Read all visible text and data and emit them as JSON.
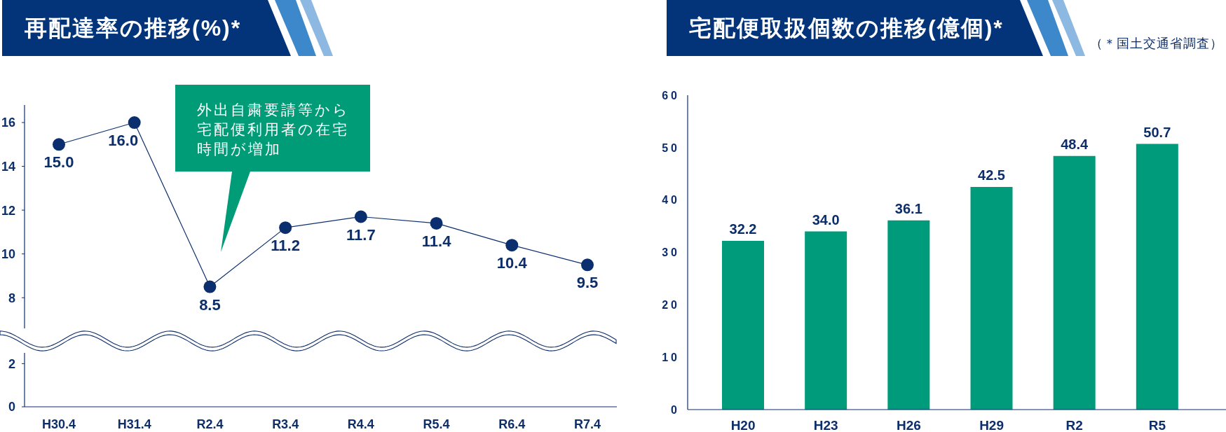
{
  "chart_data": [
    {
      "type": "line",
      "title": "再配達率の推移(%)*",
      "categories": [
        null,
        null,
        null,
        null,
        null,
        null,
        null,
        null
      ],
      "values": [
        15.0,
        16.0,
        8.5,
        11.2,
        11.7,
        11.4,
        10.4,
        9.5
      ],
      "value_labels": [
        "15.0",
        "16.0",
        "8.5",
        "11.2",
        "11.7",
        "11.4",
        "10.4",
        "9.5"
      ],
      "color": "#0b2f6e",
      "marker": "circle",
      "ylim": [
        6.6,
        16.8
      ],
      "yticks": [
        8,
        10,
        12,
        14,
        16
      ],
      "annotations": [
        "外出自粛要請等から宅配便利用者の在宅時間が増加"
      ]
    },
    {
      "type": "line",
      "categories": [
        "H30.4",
        "H31.4",
        "R2.4",
        "R3.4",
        "R4.4",
        "R5.4",
        "R6.4",
        "R7.4"
      ],
      "values": [
        null,
        null,
        null,
        null,
        null,
        null,
        null,
        null
      ],
      "ylim": [
        0,
        2.5
      ],
      "yticks": [
        0,
        2
      ]
    },
    {
      "type": "bar",
      "title": "宅配便取扱個数の推移(億個)*",
      "categories": [
        "H20",
        "H23",
        "H26",
        "H29",
        "R2",
        "R5"
      ],
      "values": [
        32.2,
        34.0,
        36.1,
        42.5,
        48.4,
        50.7
      ],
      "value_labels": [
        "32.2",
        "34.0",
        "36.1",
        "42.5",
        "48.4",
        "50.7"
      ],
      "color": "#009b7a",
      "ylim": [
        0,
        60
      ],
      "yticks": [
        0,
        10,
        20,
        30,
        40,
        50,
        60
      ],
      "annotations": [
        "（＊国土交通省調査）"
      ]
    }
  ]
}
